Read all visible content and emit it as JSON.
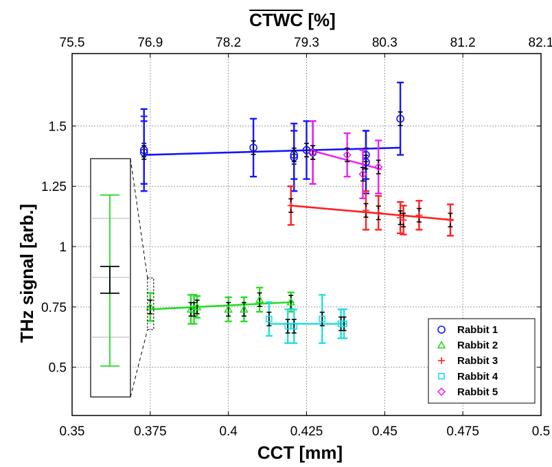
{
  "chart_data": {
    "type": "scatter",
    "xlabel": "CCT [mm]",
    "ylabel": "THz signal [arb.]",
    "top_xlabel": "CTWC [%]",
    "xlim": [
      0.35,
      0.5
    ],
    "ylim": [
      0.3,
      1.8
    ],
    "x_ticks": [
      "0.35",
      "0.375",
      "0.4",
      "0.425",
      "0.45",
      "0.475",
      "0.5"
    ],
    "y_ticks": [
      "0.5",
      "0.75",
      "1",
      "1.25",
      "1.5"
    ],
    "top_ticks": [
      "75.5",
      "76.9",
      "78.2",
      "79.3",
      "80.3",
      "81.2",
      "82.1"
    ],
    "grid": true,
    "legend_position": "bottom-right",
    "series": [
      {
        "name": "Rabbit 1",
        "marker": "circle",
        "color": "#1515ff",
        "points": [
          {
            "x": 0.373,
            "y": 1.4,
            "err": 0.17,
            "err2": 0.14
          },
          {
            "x": 0.373,
            "y": 1.39,
            "err": 0.13
          },
          {
            "x": 0.408,
            "y": 1.41,
            "err": 0.12
          },
          {
            "x": 0.421,
            "y": 1.37,
            "err": 0.14
          },
          {
            "x": 0.421,
            "y": 1.38,
            "err": 0.1
          },
          {
            "x": 0.425,
            "y": 1.4,
            "err": 0.12
          },
          {
            "x": 0.427,
            "y": 1.39,
            "err": 0.13
          },
          {
            "x": 0.444,
            "y": 1.38,
            "err": 0.1
          },
          {
            "x": 0.444,
            "y": 1.35,
            "err": 0.13
          },
          {
            "x": 0.455,
            "y": 1.53,
            "err": 0.15
          }
        ],
        "fit": [
          [
            0.373,
            1.38
          ],
          [
            0.455,
            1.41
          ]
        ]
      },
      {
        "name": "Rabbit 2",
        "marker": "triangle",
        "color": "#22dd22",
        "points": [
          {
            "x": 0.375,
            "y": 0.75,
            "err": 0.058
          },
          {
            "x": 0.388,
            "y": 0.74,
            "err": 0.06
          },
          {
            "x": 0.389,
            "y": 0.74,
            "err": 0.06
          },
          {
            "x": 0.39,
            "y": 0.75,
            "err": 0.045
          },
          {
            "x": 0.4,
            "y": 0.74,
            "err": 0.05
          },
          {
            "x": 0.405,
            "y": 0.74,
            "err": 0.05
          },
          {
            "x": 0.41,
            "y": 0.78,
            "err": 0.05
          },
          {
            "x": 0.42,
            "y": 0.77,
            "err": 0.04
          }
        ],
        "fit": [
          [
            0.375,
            0.74
          ],
          [
            0.421,
            0.77
          ]
        ]
      },
      {
        "name": "Rabbit 3",
        "marker": "plus",
        "color": "#ff2020",
        "points": [
          {
            "x": 0.42,
            "y": 1.17,
            "err": 0.08
          },
          {
            "x": 0.444,
            "y": 1.15,
            "err": 0.08
          },
          {
            "x": 0.448,
            "y": 1.14,
            "err": 0.07
          },
          {
            "x": 0.455,
            "y": 1.12,
            "err": 0.065
          },
          {
            "x": 0.456,
            "y": 1.11,
            "err": 0.06
          },
          {
            "x": 0.461,
            "y": 1.13,
            "err": 0.06
          },
          {
            "x": 0.471,
            "y": 1.11,
            "err": 0.065
          }
        ],
        "fit": [
          [
            0.42,
            1.17
          ],
          [
            0.472,
            1.11
          ]
        ]
      },
      {
        "name": "Rabbit 4",
        "marker": "square",
        "color": "#22dddd",
        "points": [
          {
            "x": 0.413,
            "y": 0.7,
            "err": 0.07
          },
          {
            "x": 0.419,
            "y": 0.67,
            "err": 0.07
          },
          {
            "x": 0.421,
            "y": 0.67,
            "err": 0.07
          },
          {
            "x": 0.43,
            "y": 0.7,
            "err": 0.1
          },
          {
            "x": 0.436,
            "y": 0.68,
            "err": 0.06
          },
          {
            "x": 0.437,
            "y": 0.68,
            "err": 0.06
          }
        ],
        "fit": [
          [
            0.413,
            0.68
          ],
          [
            0.438,
            0.68
          ]
        ]
      },
      {
        "name": "Rabbit 5",
        "marker": "diamond",
        "color": "#ee22ee",
        "points": [
          {
            "x": 0.427,
            "y": 1.39,
            "err": 0.13
          },
          {
            "x": 0.438,
            "y": 1.38,
            "err": 0.09
          },
          {
            "x": 0.443,
            "y": 1.3,
            "err": 0.1
          },
          {
            "x": 0.448,
            "y": 1.33,
            "err": 0.11
          }
        ],
        "fit": [
          [
            0.426,
            1.4
          ],
          [
            0.449,
            1.32
          ]
        ]
      }
    ],
    "inset": {
      "source_series": "Rabbit 2",
      "source_point": {
        "x": 0.375,
        "y": 0.75
      }
    }
  }
}
